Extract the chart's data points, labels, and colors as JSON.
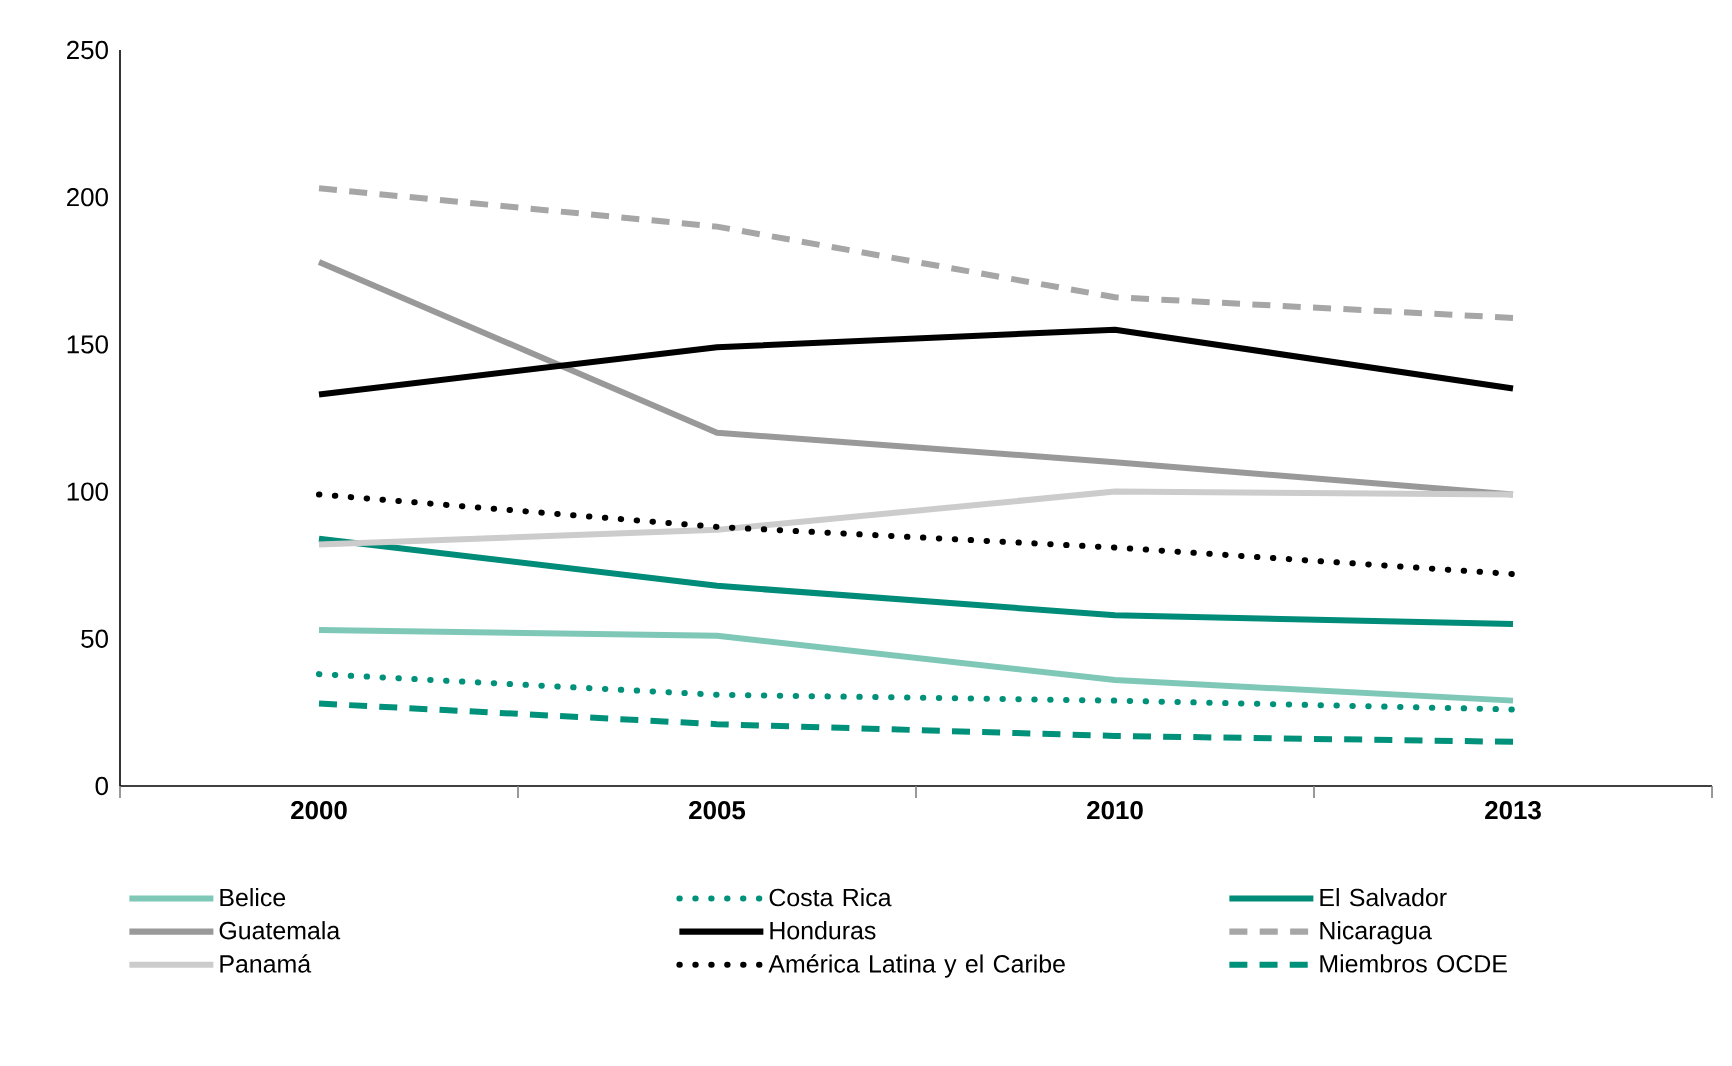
{
  "chart_data": {
    "type": "line",
    "categories": [
      "2000",
      "2005",
      "2010",
      "2013"
    ],
    "ylim": [
      0,
      250
    ],
    "yticks": [
      0,
      50,
      100,
      150,
      200,
      250
    ],
    "grid": false,
    "legend": "bottom",
    "marker": "none",
    "series": [
      {
        "name": "Belice",
        "color": "#7fc8b8",
        "line_style": "solid",
        "values": [
          53,
          51,
          36,
          29
        ]
      },
      {
        "name": "Costa Rica",
        "color": "#00917a",
        "line_style": "dotted",
        "values": [
          38,
          31,
          29,
          26
        ]
      },
      {
        "name": "El Salvador",
        "color": "#008c78",
        "line_style": "solid",
        "values": [
          84,
          68,
          58,
          55
        ]
      },
      {
        "name": "Guatemala",
        "color": "#999999",
        "line_style": "solid",
        "values": [
          178,
          120,
          110,
          99
        ]
      },
      {
        "name": "Honduras",
        "color": "#000000",
        "line_style": "solid",
        "values": [
          133,
          149,
          155,
          135
        ]
      },
      {
        "name": "Nicaragua",
        "color": "#a6a6a6",
        "line_style": "dashed",
        "values": [
          203,
          190,
          166,
          159
        ]
      },
      {
        "name": "Panamá",
        "color": "#cccccc",
        "line_style": "solid",
        "values": [
          82,
          87,
          100,
          99
        ]
      },
      {
        "name": "América Latina y el Caribe",
        "color": "#000000",
        "line_style": "dotted",
        "values": [
          99,
          88,
          81,
          72
        ]
      },
      {
        "name": "Miembros OCDE",
        "color": "#00917a",
        "line_style": "dashed",
        "values": [
          28,
          21,
          17,
          15
        ]
      }
    ]
  }
}
